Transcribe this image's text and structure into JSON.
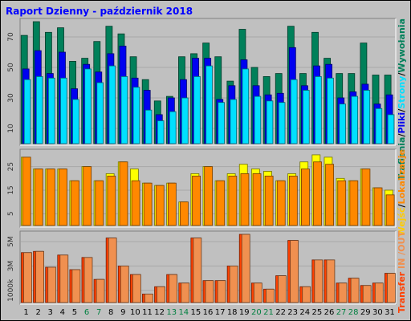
{
  "title": "Raport Dzienny -  październik 2018",
  "colors": {
    "background": "#c0c0c0",
    "plot_background": "#c0c0c0",
    "title": "#0000ff",
    "trafienia": "#00805a",
    "pliki": "#0000f0",
    "strony": "#00e0ff",
    "wizyty": "#ffff00",
    "lokalizacje": "#ff8800",
    "transfer": "#ff4000",
    "in": "#f09050",
    "weekend_tick": "#008040",
    "weekday_tick": "#000000"
  },
  "chart_data": [
    {
      "type": "bar",
      "panel": "top",
      "right_label": [
        {
          "text": "Trafienia",
          "color": "#00805a"
        },
        {
          "text": "/",
          "color": "#000000"
        },
        {
          "text": "Pliki",
          "color": "#0000f0"
        },
        {
          "text": "/",
          "color": "#000000"
        },
        {
          "text": "Strony",
          "color": "#00e0ff"
        },
        {
          "text": "/",
          "color": "#000000"
        },
        {
          "text": "Wywołania",
          "color": "#00805a"
        }
      ],
      "y_ticks": [
        {
          "label": "70",
          "value": 70
        },
        {
          "label": "50",
          "value": 50
        },
        {
          "label": "30",
          "value": 30
        },
        {
          "label": "10",
          "value": 10
        }
      ],
      "ylim": [
        0,
        80
      ],
      "grid": true,
      "categories": [
        "1",
        "2",
        "3",
        "4",
        "5",
        "6",
        "7",
        "8",
        "9",
        "10",
        "11",
        "12",
        "13",
        "14",
        "15",
        "16",
        "17",
        "18",
        "19",
        "20",
        "21",
        "22",
        "23",
        "24",
        "25",
        "26",
        "27",
        "28",
        "29",
        "30",
        "31"
      ],
      "series": [
        {
          "key": "trafienia",
          "values": [
            71,
            80,
            73,
            76,
            54,
            56,
            67,
            77,
            72,
            57,
            42,
            28,
            31,
            57,
            59,
            66,
            57,
            41,
            75,
            50,
            44,
            46,
            77,
            46,
            73,
            56,
            46,
            46,
            66,
            45,
            45
          ]
        },
        {
          "key": "pliki",
          "values": [
            49,
            61,
            46,
            60,
            36,
            52,
            47,
            59,
            64,
            43,
            35,
            19,
            30,
            42,
            56,
            56,
            29,
            38,
            55,
            38,
            32,
            33,
            63,
            38,
            51,
            52,
            30,
            34,
            39,
            26,
            32
          ]
        },
        {
          "key": "strony",
          "values": [
            42,
            44,
            43,
            43,
            29,
            49,
            40,
            51,
            44,
            37,
            22,
            15,
            21,
            30,
            44,
            51,
            27,
            29,
            49,
            31,
            28,
            27,
            42,
            35,
            44,
            43,
            26,
            31,
            35,
            23,
            19
          ]
        }
      ]
    },
    {
      "type": "bar",
      "panel": "middle",
      "right_label": [
        {
          "text": "Wejść",
          "color": "#ffcc00"
        },
        {
          "text": "/",
          "color": "#000000"
        },
        {
          "text": "Lokalizacje",
          "color": "#ff8800"
        }
      ],
      "y_ticks": [
        {
          "label": "25",
          "value": 25
        },
        {
          "label": "15",
          "value": 15
        },
        {
          "label": "5",
          "value": 5
        }
      ],
      "ylim": [
        0,
        31
      ],
      "grid": true,
      "categories": [
        "1",
        "2",
        "3",
        "4",
        "5",
        "6",
        "7",
        "8",
        "9",
        "10",
        "11",
        "12",
        "13",
        "14",
        "15",
        "16",
        "17",
        "18",
        "19",
        "20",
        "21",
        "22",
        "23",
        "24",
        "25",
        "26",
        "27",
        "28",
        "29",
        "30",
        "31"
      ],
      "series": [
        {
          "key": "wizyty",
          "values": [
            29,
            24,
            24,
            24,
            19,
            25,
            19,
            22,
            27,
            24,
            18,
            17,
            18,
            10,
            22,
            25,
            19,
            22,
            26,
            24,
            23,
            19,
            22,
            27,
            30,
            29,
            20,
            19,
            24,
            16,
            15
          ]
        },
        {
          "key": "lokalizacje",
          "values": [
            29,
            24,
            24,
            24,
            19,
            25,
            19,
            21,
            27,
            19,
            18,
            17,
            18,
            10,
            21,
            25,
            19,
            21,
            22,
            22,
            21,
            19,
            21,
            24,
            27,
            26,
            19,
            19,
            24,
            16,
            13
          ]
        }
      ]
    },
    {
      "type": "bar",
      "panel": "bottom",
      "right_label": [
        {
          "text": "Transfer",
          "color": "#ff4000"
        },
        {
          "text": " IN ",
          "color": "#f09050"
        },
        {
          "text": "/OUT",
          "color": "#f09050"
        }
      ],
      "y_ticks": [
        {
          "label": "5M",
          "value": 5000
        },
        {
          "label": "3M",
          "value": 3000
        },
        {
          "label": "1000k",
          "value": 1000
        }
      ],
      "ylim": [
        0,
        5600
      ],
      "grid": true,
      "categories": [
        "1",
        "2",
        "3",
        "4",
        "5",
        "6",
        "7",
        "8",
        "9",
        "10",
        "11",
        "12",
        "13",
        "14",
        "15",
        "16",
        "17",
        "18",
        "19",
        "20",
        "21",
        "22",
        "23",
        "24",
        "25",
        "26",
        "27",
        "28",
        "29",
        "30",
        "31"
      ],
      "series": [
        {
          "key": "transfer",
          "values": [
            4100,
            4200,
            2900,
            3900,
            2700,
            3700,
            1900,
            5300,
            3000,
            2300,
            700,
            1300,
            2300,
            1600,
            5300,
            1800,
            1800,
            3000,
            5600,
            1600,
            1100,
            2200,
            5100,
            1300,
            3500,
            3500,
            1600,
            2000,
            1400,
            1600,
            2400
          ]
        },
        {
          "key": "in",
          "values": [
            4100,
            4200,
            2900,
            3900,
            2700,
            3700,
            1900,
            5300,
            3000,
            2300,
            700,
            1300,
            2300,
            1600,
            5300,
            1800,
            1800,
            3000,
            5600,
            1600,
            1100,
            2200,
            5100,
            1300,
            3500,
            3500,
            1600,
            2000,
            1400,
            1600,
            2400
          ]
        }
      ]
    }
  ],
  "x_axis": {
    "labels": [
      "1",
      "2",
      "3",
      "4",
      "5",
      "6",
      "7",
      "8",
      "9",
      "10",
      "11",
      "12",
      "13",
      "14",
      "15",
      "16",
      "17",
      "18",
      "19",
      "20",
      "21",
      "22",
      "23",
      "24",
      "25",
      "26",
      "27",
      "28",
      "29",
      "30",
      "31"
    ],
    "weekend_days": [
      "6",
      "7",
      "13",
      "14",
      "20",
      "21",
      "27",
      "28"
    ]
  }
}
